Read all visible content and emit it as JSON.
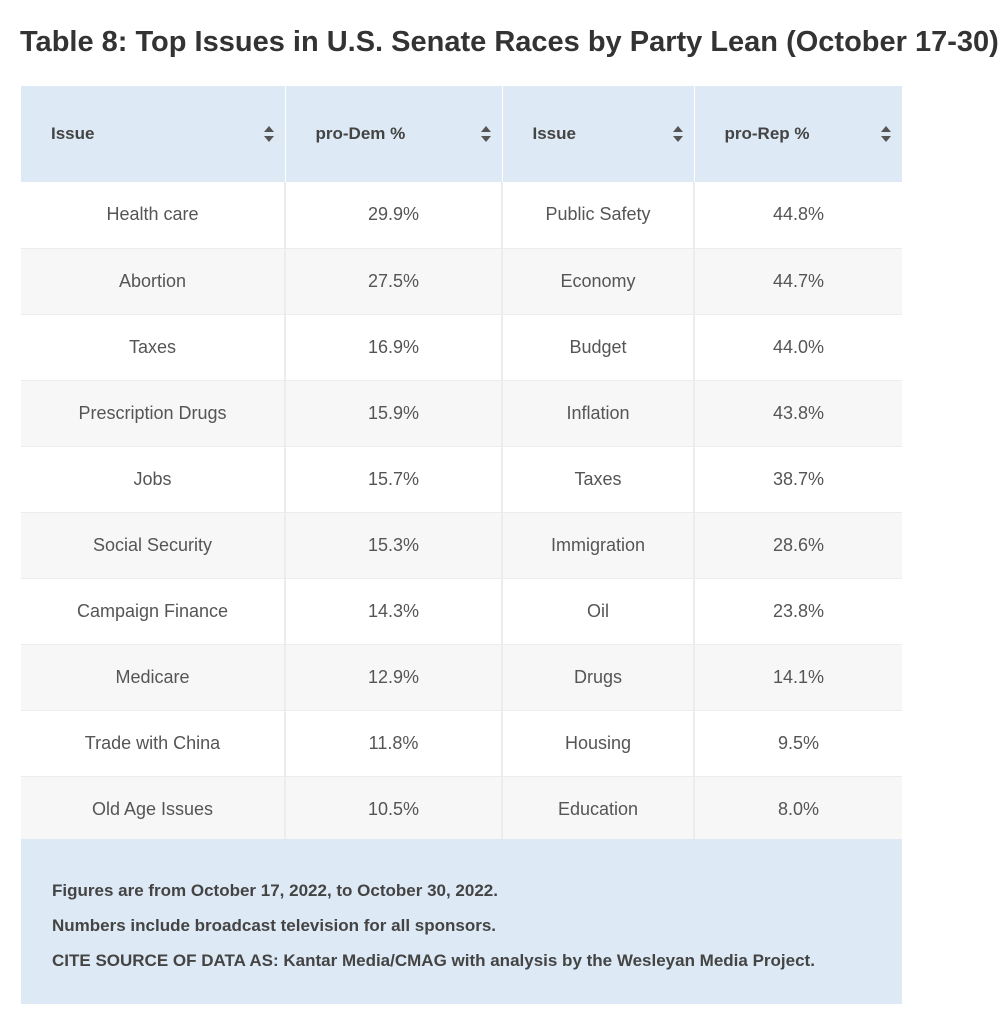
{
  "title": "Table 8: Top Issues in U.S. Senate Races by Party Lean (October 17-30)",
  "table": {
    "headers": [
      "Issue",
      "pro-Dem %",
      "Issue",
      "pro-Rep %"
    ],
    "sort_icon": "sort-icon",
    "rows": [
      [
        "Health care",
        "29.9%",
        "Public Safety",
        "44.8%"
      ],
      [
        "Abortion",
        "27.5%",
        "Economy",
        "44.7%"
      ],
      [
        "Taxes",
        "16.9%",
        "Budget",
        "44.0%"
      ],
      [
        "Prescription Drugs",
        "15.9%",
        "Inflation",
        "43.8%"
      ],
      [
        "Jobs",
        "15.7%",
        "Taxes",
        "38.7%"
      ],
      [
        "Social Security",
        "15.3%",
        "Immigration",
        "28.6%"
      ],
      [
        "Campaign Finance",
        "14.3%",
        "Oil",
        "23.8%"
      ],
      [
        "Medicare",
        "12.9%",
        "Drugs",
        "14.1%"
      ],
      [
        "Trade with China",
        "11.8%",
        "Housing",
        "9.5%"
      ],
      [
        "Old Age Issues",
        "10.5%",
        "Education",
        "8.0%"
      ]
    ]
  },
  "notes": [
    "Figures are from October 17, 2022, to October 30, 2022.",
    "Numbers include broadcast television for all sponsors.",
    "CITE SOURCE OF DATA AS: Kantar Media/CMAG with analysis by the Wesleyan Media Project."
  ],
  "colors": {
    "header_bg": "#dde9f4",
    "row_alt_bg": "#f7f7f7",
    "text": "#444444"
  }
}
